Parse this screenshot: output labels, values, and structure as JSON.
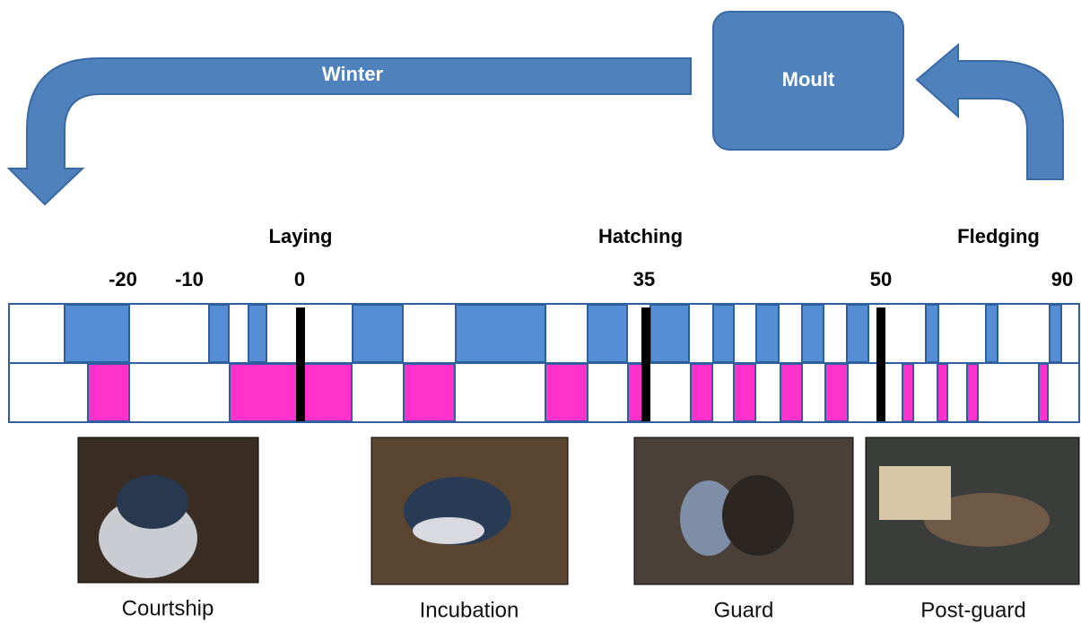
{
  "cycle": {
    "winter": "Winter",
    "moult": "Moult"
  },
  "events": [
    {
      "label": "Laying"
    },
    {
      "label": "Hatching"
    },
    {
      "label": "Fledging"
    }
  ],
  "days": [
    -20,
    -10,
    0,
    35,
    50,
    90
  ],
  "stages": [
    {
      "label": "Courtship"
    },
    {
      "label": "Incubation"
    },
    {
      "label": "Guard"
    },
    {
      "label": "Post-guard"
    }
  ]
}
